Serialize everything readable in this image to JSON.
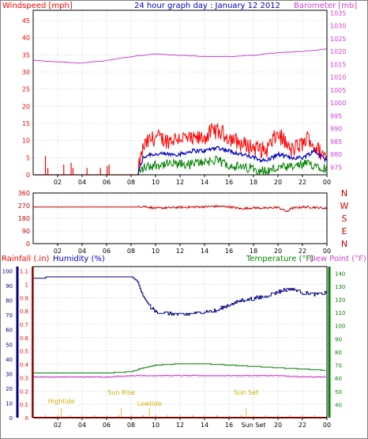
{
  "header": {
    "windspeed_label": "Windspeed [mph]",
    "title": "24 hour graph day : January 12 2012",
    "barometer_label": "Barometer [mb]"
  },
  "lower_header": {
    "rainfall_label": "Rainfall (.in)",
    "humidity_label": "Humidity (%)",
    "temperature_label": "Temperature (°F)",
    "dewpoint_label": "Dew Point (°F)"
  },
  "annotations": {
    "hightide": "Hightide",
    "sunrise": "Sun Rise",
    "lowtide": "Lowtide",
    "sunset": "Sun Set"
  },
  "colors": {
    "wind_gust": "#ff0000",
    "wind_avg": "#0000c0",
    "wind_low": "#008000",
    "barometer": "#d040d0",
    "direction": "#cc0000",
    "humidity": "#000080",
    "temperature": "#008000",
    "dewpoint": "#d040d0",
    "rainfall": "#ff0000",
    "tide": "#e0c040",
    "grid": "#b0b0b0",
    "frame": "#000000"
  },
  "chart_data": [
    {
      "type": "line",
      "name": "wind-barometer",
      "x_ticks": [
        "02",
        "04",
        "06",
        "08",
        "10",
        "12",
        "14",
        "16",
        "18",
        "20",
        "22",
        "00"
      ],
      "left_axis": {
        "ticks": [
          0,
          5,
          10,
          15,
          20,
          25,
          30,
          35,
          40,
          45
        ],
        "ylim": [
          0,
          48
        ]
      },
      "right_axis": {
        "ticks": [
          975,
          980,
          985,
          990,
          995,
          1000,
          1005,
          1010,
          1015,
          1020,
          1025,
          1030,
          1035
        ],
        "ylim": [
          972,
          1036
        ]
      },
      "grid": true,
      "series": [
        {
          "name": "Windspeed gust",
          "axis": "left",
          "x": [
            1.0,
            1.05,
            2.5,
            3.1,
            3.2,
            4.5,
            5.5,
            6.1,
            8.5,
            9,
            9.5,
            10,
            11,
            12,
            13,
            14,
            14.8,
            15.5,
            16,
            17,
            18,
            19,
            20,
            20.5,
            21,
            22,
            22.5,
            23,
            24
          ],
          "y": [
            5,
            0,
            0,
            3,
            0,
            2,
            2,
            3,
            0,
            8,
            10,
            11,
            10,
            11,
            10,
            11,
            13,
            12,
            11,
            9,
            8,
            7,
            12,
            10,
            7,
            9,
            11,
            8,
            5
          ]
        },
        {
          "name": "Windspeed average",
          "axis": "left",
          "x": [
            8.5,
            9,
            9.5,
            10,
            11,
            12,
            13,
            14,
            15,
            16,
            17,
            18,
            19,
            20,
            21,
            22,
            23,
            24
          ],
          "y": [
            0,
            5,
            6,
            6,
            6,
            6,
            7,
            7,
            8,
            7,
            6,
            5,
            4,
            6,
            5,
            5,
            7,
            4
          ]
        },
        {
          "name": "Windspeed low",
          "axis": "left",
          "x": [
            8.5,
            9,
            10,
            11,
            12,
            13,
            14,
            15,
            16,
            17,
            18,
            19,
            20,
            21,
            22,
            23,
            24
          ],
          "y": [
            0,
            2,
            3,
            3,
            3,
            3,
            4,
            4,
            3,
            2,
            2,
            1,
            2,
            2,
            3,
            3,
            2
          ]
        },
        {
          "name": "Barometer",
          "axis": "right",
          "x": [
            0,
            2,
            4,
            6,
            8,
            10,
            12,
            14,
            16,
            18,
            20,
            22,
            24
          ],
          "y": [
            1016.5,
            1016,
            1015.5,
            1016.5,
            1018,
            1019,
            1018.5,
            1018,
            1018,
            1018.5,
            1019.5,
            1020,
            1021
          ]
        }
      ]
    },
    {
      "type": "line",
      "name": "wind-direction",
      "x_ticks": [
        "02",
        "04",
        "06",
        "08",
        "10",
        "12",
        "14",
        "16",
        "18",
        "20",
        "22",
        "00"
      ],
      "left_axis": {
        "ticks": [
          0,
          90,
          180,
          270,
          360
        ],
        "ylim": [
          0,
          360
        ]
      },
      "right_labels": [
        "N",
        "W",
        "S",
        "E",
        "N"
      ],
      "grid": true,
      "series": [
        {
          "name": "Wind direction",
          "x": [
            0,
            8.5,
            9,
            10,
            12,
            14,
            15,
            16,
            17,
            18,
            19,
            20,
            20.8,
            21,
            22,
            23,
            24
          ],
          "y": [
            260,
            260,
            265,
            252,
            258,
            262,
            265,
            262,
            248,
            255,
            252,
            258,
            225,
            250,
            260,
            258,
            250
          ]
        }
      ]
    },
    {
      "type": "line",
      "name": "temperature-humidity",
      "x_ticks": [
        "02",
        "04",
        "06",
        "08",
        "10",
        "12",
        "14",
        "16",
        "Sun Set",
        "20",
        "22",
        "00"
      ],
      "humidity_axis": {
        "ticks": [
          0,
          10,
          20,
          30,
          40,
          50,
          60,
          70,
          80,
          90,
          100
        ],
        "ylim": [
          0,
          103
        ]
      },
      "rain_axis": {
        "ticks": [
          0,
          0.1,
          0.2,
          0.3,
          0.4,
          0.5,
          0.6,
          0.7,
          0.8,
          0.9,
          1,
          1.1
        ],
        "ylim": [
          0,
          1.133
        ]
      },
      "temp_axis": {
        "ticks": [
          40,
          50,
          60,
          70,
          80,
          90,
          100,
          110,
          120,
          130,
          140
        ],
        "ylim": [
          30,
          145
        ]
      },
      "grid": true,
      "series": [
        {
          "name": "Humidity",
          "axis": "humidity",
          "x": [
            0,
            2,
            4,
            6,
            7,
            8,
            8.5,
            9,
            9.5,
            10,
            11,
            12,
            13,
            14,
            15,
            16,
            17,
            18,
            19,
            20,
            21,
            21.5,
            22,
            23,
            24
          ],
          "y": [
            95,
            96,
            96,
            96,
            96,
            96,
            93,
            82,
            76,
            72,
            71,
            70,
            71,
            72,
            73,
            77,
            80,
            81,
            83,
            86,
            88,
            87,
            85,
            84,
            85
          ]
        },
        {
          "name": "Temperature",
          "axis": "temp",
          "x": [
            0,
            2,
            4,
            6,
            8,
            9,
            10,
            12,
            14,
            16,
            18,
            20,
            22,
            24
          ],
          "y": [
            64,
            64,
            64,
            64,
            65,
            68,
            70,
            71,
            71,
            70,
            69,
            68,
            67,
            66
          ]
        },
        {
          "name": "Dew Point",
          "axis": "temp",
          "x": [
            0,
            2,
            4,
            6,
            8,
            10,
            12,
            14,
            16,
            18,
            20,
            22,
            24
          ],
          "y": [
            61,
            61,
            61,
            61,
            62,
            62,
            62,
            62,
            62,
            62,
            62,
            61,
            61
          ]
        },
        {
          "name": "Rainfall",
          "axis": "rain",
          "x": [
            0,
            24
          ],
          "y": [
            0,
            0
          ]
        }
      ],
      "events": [
        {
          "name": "Hightide",
          "x": 2.3
        },
        {
          "name": "Sun Rise",
          "x": 7.2
        },
        {
          "name": "Lowtide",
          "x": 9.5
        },
        {
          "name": "Sun Set",
          "x": 17.4
        }
      ]
    }
  ]
}
